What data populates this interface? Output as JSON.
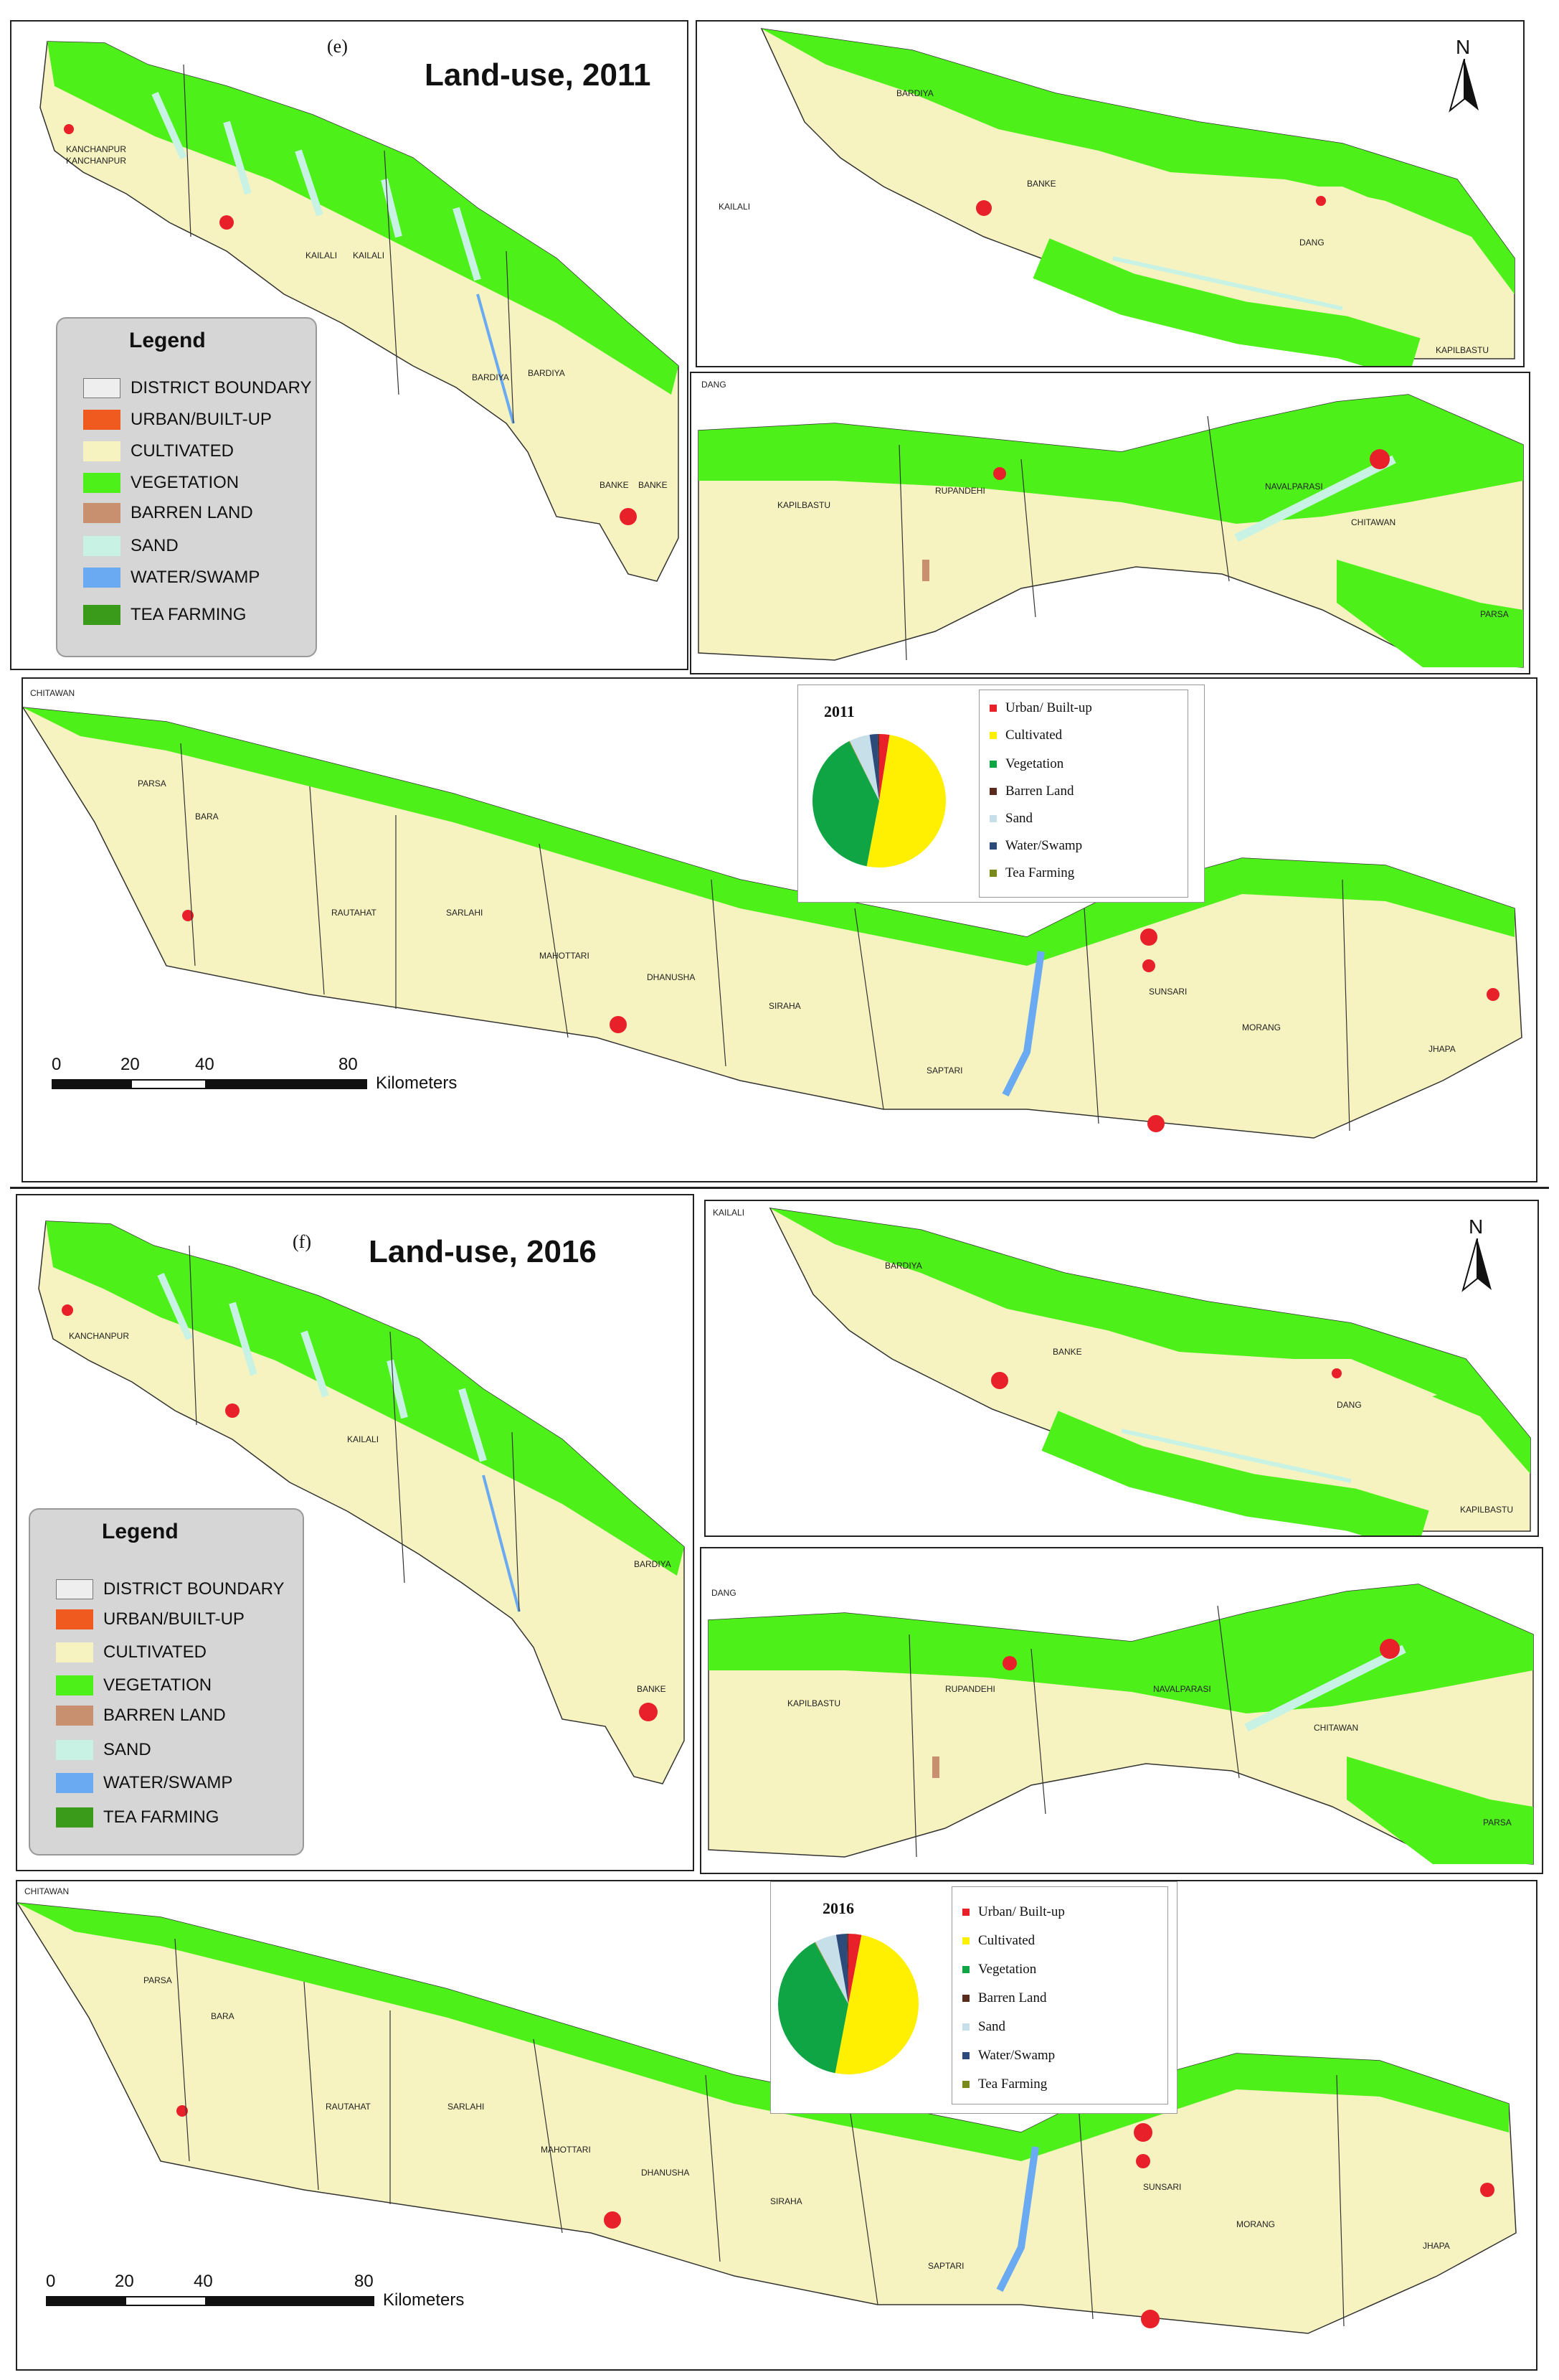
{
  "colors": {
    "urban": "#e8202a",
    "urban_legend": "#f05a1e",
    "cultivated": "#f6f3c0",
    "vegetation": "#4ef01a",
    "barren": "#c9906f",
    "sand": "#c8f3e4",
    "water": "#6aaaf2",
    "tea": "#3a9a1a",
    "pie_cultivated": "#ffef00",
    "pie_vegetation": "#0fa544",
    "pie_sand": "#c6dfe8",
    "pie_water": "#2c4a7a",
    "pie_barren": "#5a2b1c",
    "pie_tea": "#7a8a1a"
  },
  "panels": [
    {
      "tag": "(e)",
      "title": "Land-use, 2011",
      "legend": {
        "heading": "Legend",
        "items": [
          {
            "label": "DISTRICT BOUNDARY",
            "color": "#eeeeee"
          },
          {
            "label": "URBAN/BUILT-UP",
            "color": "#f05a1e"
          },
          {
            "label": "CULTIVATED",
            "color": "#f6f3c0"
          },
          {
            "label": "VEGETATION",
            "color": "#4ef01a"
          },
          {
            "label": "BARREN LAND",
            "color": "#c9906f"
          },
          {
            "label": "SAND",
            "color": "#c8f3e4"
          },
          {
            "label": "WATER/SWAMP",
            "color": "#6aaaf2"
          },
          {
            "label": "TEA FARMING",
            "color": "#3a9a1a"
          }
        ]
      },
      "north": "N",
      "scale": {
        "ticks": [
          "0",
          "20",
          "40",
          "80"
        ],
        "unit": "Kilometers"
      },
      "districts_west": [
        "KANCHANPUR",
        "KANCHANPUR",
        "KAILALI",
        "KAILALI",
        "BARDIYA",
        "BARDIYA",
        "BANKE",
        "BANKE"
      ],
      "districts_mid_top": [
        "KAILALI",
        "BARDIYA",
        "BANKE",
        "DANG",
        "KAPILBASTU"
      ],
      "districts_mid_bottom": [
        "DANG",
        "KAPILBASTU",
        "RUPANDEHI",
        "NAVALPARASI",
        "CHITAWAN",
        "PARSA"
      ],
      "districts_east": [
        "CHITAWAN",
        "PARSA",
        "BARA",
        "RAUTAHAT",
        "SARLAHI",
        "MAHOTTARI",
        "DHANUSHA",
        "SIRAHA",
        "SAPTARI",
        "SUNSARI",
        "MORANG",
        "JHAPA"
      ]
    },
    {
      "tag": "(f)",
      "title": "Land-use, 2016",
      "legend": {
        "heading": "Legend",
        "items": [
          {
            "label": "DISTRICT BOUNDARY",
            "color": "#eeeeee"
          },
          {
            "label": "URBAN/BUILT-UP",
            "color": "#f05a1e"
          },
          {
            "label": "CULTIVATED",
            "color": "#f6f3c0"
          },
          {
            "label": "VEGETATION",
            "color": "#4ef01a"
          },
          {
            "label": "BARREN LAND",
            "color": "#c9906f"
          },
          {
            "label": "SAND",
            "color": "#c8f3e4"
          },
          {
            "label": "WATER/SWAMP",
            "color": "#6aaaf2"
          },
          {
            "label": "TEA FARMING",
            "color": "#3a9a1a"
          }
        ]
      },
      "north": "N",
      "scale": {
        "ticks": [
          "0",
          "20",
          "40",
          "80"
        ],
        "unit": "Kilometers"
      },
      "districts_west": [
        "KANCHANPUR",
        "KAILALI",
        "BARDIYA",
        "BANKE"
      ],
      "districts_mid_top": [
        "KAILALI",
        "BARDIYA",
        "BANKE",
        "DANG",
        "KAPILBASTU"
      ],
      "districts_mid_bottom": [
        "DANG",
        "KAPILBASTU",
        "RUPANDEHI",
        "NAVALPARASI",
        "CHITAWAN",
        "PARSA"
      ],
      "districts_east": [
        "CHITAWAN",
        "PARSA",
        "BARA",
        "RAUTAHAT",
        "SARLAHI",
        "MAHOTTARI",
        "DHANUSHA",
        "SIRAHA",
        "SAPTARI",
        "SUNSARI",
        "MORANG",
        "JHAPA"
      ]
    }
  ],
  "chart_data": [
    {
      "type": "pie",
      "title": "2011",
      "categories": [
        "Urban/ Built-up",
        "Cultivated",
        "Vegetation",
        "Barren Land",
        "Sand",
        "Water/Swamp",
        "Tea Farming"
      ],
      "values": [
        2.5,
        50.5,
        39.5,
        0.3,
        5.0,
        2.0,
        0.2
      ]
    },
    {
      "type": "pie",
      "title": "2016",
      "categories": [
        "Urban/ Built-up",
        "Cultivated",
        "Vegetation",
        "Barren Land",
        "Sand",
        "Water/Swamp",
        "Tea Farming"
      ],
      "values": [
        3.0,
        50.0,
        39.0,
        0.3,
        5.0,
        2.5,
        0.2
      ]
    }
  ]
}
